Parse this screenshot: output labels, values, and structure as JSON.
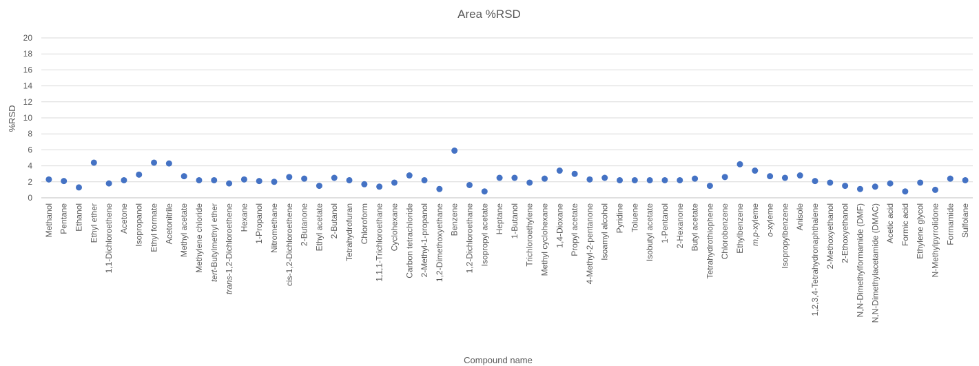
{
  "chart_data": {
    "type": "scatter",
    "title": "Area %RSD",
    "xlabel": "Compound name",
    "ylabel": "%RSD",
    "ylim": [
      0,
      20
    ],
    "yticks": [
      0,
      2,
      4,
      6,
      8,
      10,
      12,
      14,
      16,
      18,
      20
    ],
    "grid": true,
    "legend": "none",
    "marker_color": "#4472c4",
    "categories": [
      {
        "pre": "",
        "it": "",
        "post": "Methanol"
      },
      {
        "pre": "",
        "it": "",
        "post": "Pentane"
      },
      {
        "pre": "",
        "it": "",
        "post": "Ethanol"
      },
      {
        "pre": "",
        "it": "",
        "post": "Ethyl ether"
      },
      {
        "pre": "",
        "it": "",
        "post": "1,1-Dichloroethene"
      },
      {
        "pre": "",
        "it": "",
        "post": "Acetone"
      },
      {
        "pre": "",
        "it": "",
        "post": "Isopropanol"
      },
      {
        "pre": "",
        "it": "",
        "post": "Ethyl formate"
      },
      {
        "pre": "",
        "it": "",
        "post": "Acetonitrile"
      },
      {
        "pre": "",
        "it": "",
        "post": "Methyl acetate"
      },
      {
        "pre": "",
        "it": "",
        "post": "Methylene chloride"
      },
      {
        "pre": "",
        "it": "tert",
        "post": "-Butylmethyl ether"
      },
      {
        "pre": "",
        "it": "trans",
        "post": "-1,2-Dichloroethene"
      },
      {
        "pre": "",
        "it": "",
        "post": "Hexane"
      },
      {
        "pre": "",
        "it": "",
        "post": "1-Propanol"
      },
      {
        "pre": "",
        "it": "",
        "post": "Nitromethane"
      },
      {
        "pre": "",
        "it": "",
        "post": "cis-1,2-Dichloroethene"
      },
      {
        "pre": "",
        "it": "",
        "post": "2-Butanone"
      },
      {
        "pre": "",
        "it": "",
        "post": "Ethyl acetate"
      },
      {
        "pre": "",
        "it": "",
        "post": "2-Butanol"
      },
      {
        "pre": "",
        "it": "",
        "post": "Tetrahydrofuran"
      },
      {
        "pre": "",
        "it": "",
        "post": "Chloroform"
      },
      {
        "pre": "",
        "it": "",
        "post": "1,1,1-Trichloroethane"
      },
      {
        "pre": "",
        "it": "",
        "post": "Cyclohexane"
      },
      {
        "pre": "",
        "it": "",
        "post": "Carbon tetrachloride"
      },
      {
        "pre": "",
        "it": "",
        "post": "2-Methyl-1-propanol"
      },
      {
        "pre": "",
        "it": "",
        "post": "1,2-Dimethoxyethane"
      },
      {
        "pre": "",
        "it": "",
        "post": "Benzene"
      },
      {
        "pre": "",
        "it": "",
        "post": "1,2-Dichloroethane"
      },
      {
        "pre": "",
        "it": "",
        "post": "Isopropyl acetate"
      },
      {
        "pre": "",
        "it": "",
        "post": "Heptane"
      },
      {
        "pre": "",
        "it": "",
        "post": "1-Butanol"
      },
      {
        "pre": "",
        "it": "",
        "post": "Trichloroethylene"
      },
      {
        "pre": "",
        "it": "",
        "post": "Methyl cyclohexane"
      },
      {
        "pre": "",
        "it": "",
        "post": "1,4-Dioxane"
      },
      {
        "pre": "",
        "it": "",
        "post": "Propyl acetate"
      },
      {
        "pre": "",
        "it": "",
        "post": "4-Methyl-2-pentanone"
      },
      {
        "pre": "",
        "it": "",
        "post": "Isoamyl alcohol"
      },
      {
        "pre": "",
        "it": "",
        "post": "Pyridine"
      },
      {
        "pre": "",
        "it": "",
        "post": "Toluene"
      },
      {
        "pre": "",
        "it": "",
        "post": "Isobutyl acetate"
      },
      {
        "pre": "",
        "it": "",
        "post": "1-Pentanol"
      },
      {
        "pre": "",
        "it": "",
        "post": "2-Hexanone"
      },
      {
        "pre": "",
        "it": "",
        "post": "Butyl acetate"
      },
      {
        "pre": "",
        "it": "",
        "post": "Tetrahydrothiophene"
      },
      {
        "pre": "",
        "it": "",
        "post": "Chlorobenzene"
      },
      {
        "pre": "",
        "it": "",
        "post": "Ethylbenzene"
      },
      {
        "pre": "",
        "it": "m,p",
        "post": "-xyleme"
      },
      {
        "pre": "",
        "it": "o",
        "post": "-xyleme"
      },
      {
        "pre": "",
        "it": "",
        "post": "Isopropylbenzene"
      },
      {
        "pre": "",
        "it": "",
        "post": "Anisole"
      },
      {
        "pre": "",
        "it": "",
        "post": "1,2,3,4-Tetrahydronaphthalene"
      },
      {
        "pre": "",
        "it": "",
        "post": "2-Methoxyethanol"
      },
      {
        "pre": "",
        "it": "",
        "post": "2-Ethoxyethanol"
      },
      {
        "pre": "",
        "it": "",
        "post": "N,N-Dimethylformamide (DMF)"
      },
      {
        "pre": "",
        "it": "",
        "post": "N,N-Dimethylacetamide (DMAC)"
      },
      {
        "pre": "",
        "it": "",
        "post": "Acetic acid"
      },
      {
        "pre": "",
        "it": "",
        "post": "Formic acid"
      },
      {
        "pre": "",
        "it": "",
        "post": "Ethylene glycol"
      },
      {
        "pre": "",
        "it": "",
        "post": "N-Methylpyrrolidone"
      },
      {
        "pre": "",
        "it": "",
        "post": "Formamide"
      },
      {
        "pre": "",
        "it": "",
        "post": "Sulfolane"
      }
    ],
    "values": [
      2.3,
      2.1,
      1.3,
      4.4,
      1.8,
      2.2,
      2.9,
      4.4,
      4.3,
      2.7,
      2.2,
      2.2,
      1.8,
      2.3,
      2.1,
      2.0,
      2.6,
      2.4,
      1.5,
      2.5,
      2.2,
      1.7,
      1.4,
      1.9,
      2.8,
      2.2,
      1.1,
      5.9,
      1.6,
      0.8,
      2.5,
      2.5,
      1.9,
      2.4,
      3.4,
      3.0,
      2.3,
      2.5,
      2.2,
      2.2,
      2.2,
      2.2,
      2.2,
      2.4,
      1.5,
      2.6,
      4.2,
      3.4,
      2.7,
      2.5,
      2.8,
      2.1,
      1.9,
      1.5,
      1.1,
      1.4,
      1.8,
      0.8,
      1.9,
      1.0,
      2.4,
      2.2
    ]
  }
}
